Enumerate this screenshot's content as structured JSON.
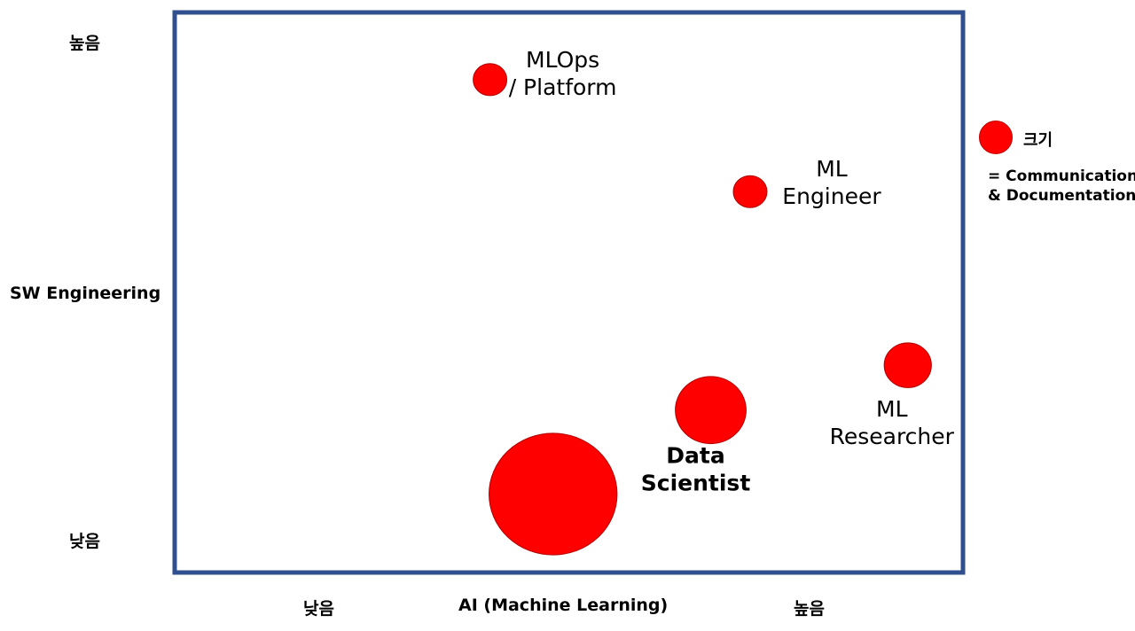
{
  "chart_data": {
    "type": "scatter",
    "variant": "bubble",
    "xlabel": "AI (Machine Learning)",
    "ylabel": "SW Engineering",
    "x_ticks": {
      "low": "낮음",
      "high": "높음"
    },
    "y_ticks": {
      "low": "낮음",
      "high": "높음"
    },
    "xlim": [
      0,
      100
    ],
    "ylim": [
      0,
      100
    ],
    "points": [
      {
        "id": "mlops",
        "name_lines": [
          "MLOps",
          "/ Platform"
        ],
        "x": 40,
        "y": 88,
        "size": 1.0,
        "bold": false
      },
      {
        "id": "ml-engineer",
        "name_lines": [
          "ML",
          "Engineer"
        ],
        "x": 73,
        "y": 68,
        "size": 1.0,
        "bold": false
      },
      {
        "id": "ml-researcher",
        "name_lines": [
          "ML",
          "Researcher"
        ],
        "x": 93,
        "y": 37,
        "size": 1.4,
        "bold": false
      },
      {
        "id": "data-scientist",
        "name_lines": [
          "Data",
          "Scientist"
        ],
        "x": 68,
        "y": 29,
        "size": 2.1,
        "bold": true
      },
      {
        "id": "unlabeled",
        "name_lines": [],
        "x": 48,
        "y": 14,
        "size": 3.8,
        "bold": false
      }
    ],
    "legend": {
      "size_label": "크기",
      "meaning_lines": [
        "= Communication",
        "& Documentation"
      ]
    }
  },
  "colors": {
    "bubble": "#ff0000",
    "frame": "#2f4f8f"
  }
}
